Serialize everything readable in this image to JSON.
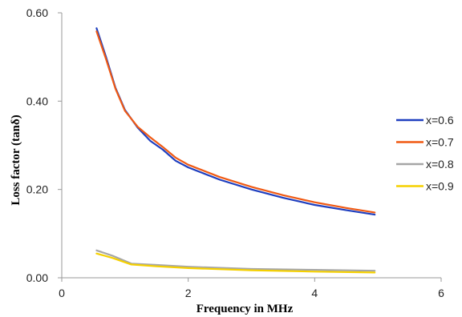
{
  "chart_data": {
    "type": "line",
    "xlabel": "Frequency in MHz",
    "ylabel": "Loss factor (tanδ)",
    "xlim": [
      0,
      6
    ],
    "ylim": [
      0,
      0.6
    ],
    "xticks": [
      "0",
      "2",
      "4",
      "6"
    ],
    "yticks": [
      "0.00",
      "0.20",
      "0.40",
      "0.60"
    ],
    "grid": false,
    "legend_position": "right",
    "series": [
      {
        "name": "x=0.6",
        "color": "#1f3fbf",
        "points": [
          [
            0.55,
            0.565
          ],
          [
            0.7,
            0.5
          ],
          [
            0.85,
            0.43
          ],
          [
            1.0,
            0.38
          ],
          [
            1.2,
            0.34
          ],
          [
            1.4,
            0.31
          ],
          [
            1.6,
            0.29
          ],
          [
            1.8,
            0.265
          ],
          [
            2.0,
            0.25
          ],
          [
            2.5,
            0.222
          ],
          [
            3.0,
            0.2
          ],
          [
            3.5,
            0.181
          ],
          [
            4.0,
            0.165
          ],
          [
            4.5,
            0.153
          ],
          [
            4.95,
            0.143
          ]
        ]
      },
      {
        "name": "x=0.7",
        "color": "#f05a14",
        "points": [
          [
            0.55,
            0.558
          ],
          [
            0.7,
            0.495
          ],
          [
            0.85,
            0.428
          ],
          [
            1.0,
            0.378
          ],
          [
            1.2,
            0.342
          ],
          [
            1.4,
            0.318
          ],
          [
            1.6,
            0.296
          ],
          [
            1.8,
            0.272
          ],
          [
            2.0,
            0.256
          ],
          [
            2.5,
            0.228
          ],
          [
            3.0,
            0.206
          ],
          [
            3.5,
            0.187
          ],
          [
            4.0,
            0.171
          ],
          [
            4.5,
            0.158
          ],
          [
            4.95,
            0.148
          ]
        ]
      },
      {
        "name": "x=0.8",
        "color": "#a6a6a6",
        "points": [
          [
            0.55,
            0.062
          ],
          [
            0.8,
            0.05
          ],
          [
            1.1,
            0.032
          ],
          [
            1.5,
            0.029
          ],
          [
            2.0,
            0.025
          ],
          [
            3.0,
            0.02
          ],
          [
            4.0,
            0.018
          ],
          [
            4.95,
            0.016
          ]
        ]
      },
      {
        "name": "x=0.9",
        "color": "#f5d000",
        "points": [
          [
            0.55,
            0.055
          ],
          [
            0.8,
            0.045
          ],
          [
            1.1,
            0.03
          ],
          [
            1.5,
            0.026
          ],
          [
            2.0,
            0.022
          ],
          [
            3.0,
            0.017
          ],
          [
            4.0,
            0.014
          ],
          [
            4.95,
            0.012
          ]
        ]
      }
    ]
  }
}
